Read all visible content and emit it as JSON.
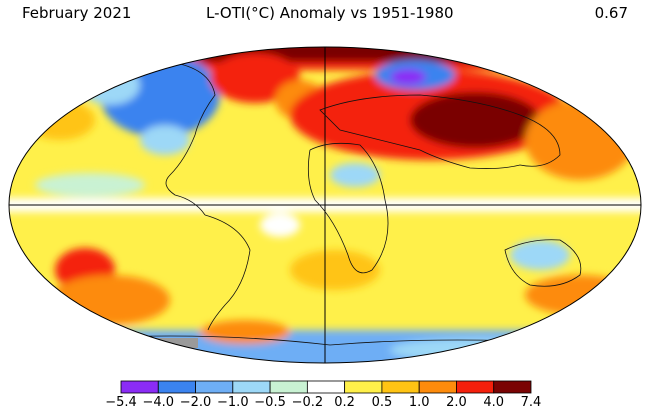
{
  "header": {
    "month": "February 2021",
    "title": "L-OTI(°C) Anomaly vs 1951-1980",
    "global_value": "0.67"
  },
  "colorbar": {
    "ticks": [
      "−5.4",
      "−4.0",
      "−2.0",
      "−1.0",
      "−0.5",
      "−0.2",
      "0.2",
      "0.5",
      "1.0",
      "2.0",
      "4.0",
      "7.4"
    ],
    "colors": [
      "#8b2cf5",
      "#3b83ef",
      "#6eaef5",
      "#9dd8f7",
      "#c9f2d3",
      "#ffffff",
      "#fff04a",
      "#ffc414",
      "#fd8b0c",
      "#f4200c",
      "#7a0303"
    ]
  }
}
